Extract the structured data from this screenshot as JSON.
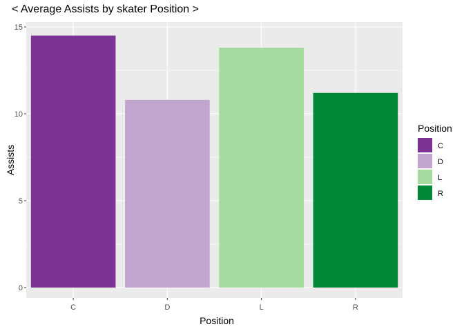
{
  "chart_data": {
    "type": "bar",
    "title": "< Average Assists by skater Position >",
    "xlabel": "Position",
    "ylabel": "Assists",
    "categories": [
      "C",
      "D",
      "L",
      "R"
    ],
    "values": [
      14.5,
      10.8,
      13.8,
      11.2
    ],
    "colors": [
      "#7b3294",
      "#c2a5cf",
      "#a6dba0",
      "#008837"
    ],
    "ylim": [
      0,
      15
    ],
    "yticks": [
      0,
      5,
      10,
      15
    ],
    "grid": true,
    "legend": {
      "title": "Position",
      "placement": "right",
      "entries": [
        "C",
        "D",
        "L",
        "R"
      ]
    }
  }
}
